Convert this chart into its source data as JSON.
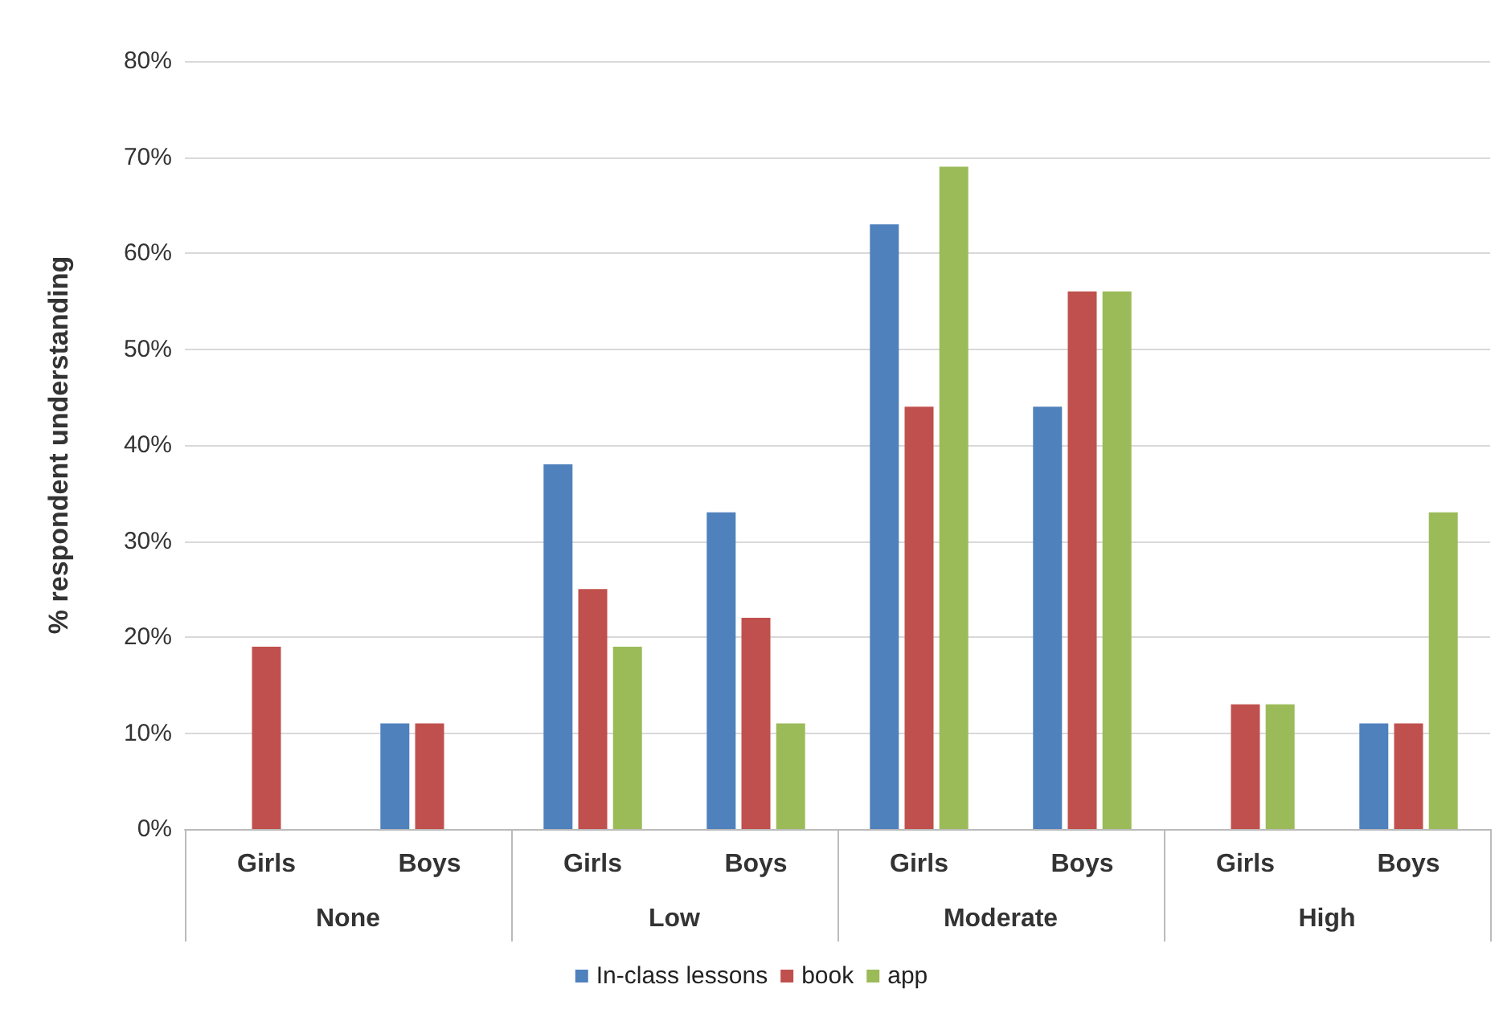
{
  "chart_data": {
    "type": "bar",
    "ylabel": "% respondent understanding",
    "categories": [
      "Girls",
      "Boys",
      "Girls",
      "Boys",
      "Girls",
      "Boys",
      "Girls",
      "Boys"
    ],
    "annotations": [
      "None",
      "Low",
      "Moderate",
      "High"
    ],
    "series": [
      {
        "name": "In-class lessons",
        "color": "#4f81bd",
        "values": [
          0,
          11,
          38,
          33,
          63,
          44,
          0,
          11
        ]
      },
      {
        "name": "book",
        "color": "#c0504d",
        "values": [
          19,
          11,
          25,
          22,
          44,
          56,
          13,
          11
        ]
      },
      {
        "name": "app",
        "color": "#9bbb59",
        "values": [
          0,
          0,
          19,
          11,
          69,
          56,
          13,
          33
        ]
      }
    ],
    "ylim": [
      0,
      80
    ],
    "yticks": [
      {
        "value": 0,
        "label": "0%"
      },
      {
        "value": 10,
        "label": "10%"
      },
      {
        "value": 20,
        "label": "20%"
      },
      {
        "value": 30,
        "label": "30%"
      },
      {
        "value": 40,
        "label": "40%"
      },
      {
        "value": 50,
        "label": "50%"
      },
      {
        "value": 60,
        "label": "60%"
      },
      {
        "value": 70,
        "label": "70%"
      },
      {
        "value": 80,
        "label": "80%"
      }
    ],
    "grid": "y",
    "legend": "bottom"
  }
}
